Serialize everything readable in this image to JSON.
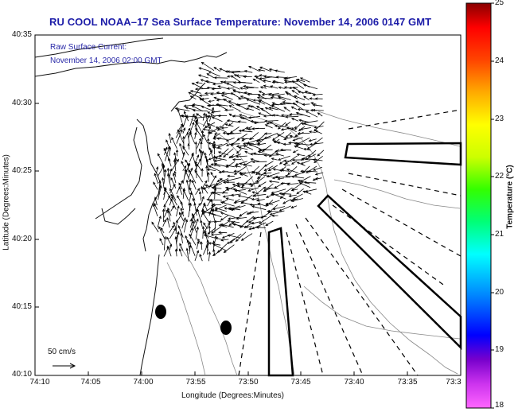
{
  "title": "RU COOL  NOAA–17  Sea Surface Temperature:  November 14, 2006 0147 GMT",
  "overlay": {
    "line1": "Raw Surface Current:",
    "line2": "November 14, 2006 02:00 GMT"
  },
  "axes": {
    "xlabel": "Longitude (Degrees:Minutes)",
    "ylabel": "Latitude (Degrees:Minutes)",
    "x_ticks": [
      "74:10",
      "74:05",
      "74:00",
      "73:55",
      "73:50",
      "73:45",
      "73:40",
      "73:35",
      "73:3"
    ],
    "y_ticks": [
      "40:35",
      "40:30",
      "40:25",
      "40:20",
      "40:15",
      "40:10"
    ]
  },
  "colorbar": {
    "label": "Temperature (°C)",
    "ticks": [
      "25",
      "24",
      "23",
      "22",
      "21",
      "20",
      "19",
      "18"
    ],
    "min": 18,
    "max": 25,
    "colors": [
      "#ff66ff",
      "#7700cc",
      "#0000ff",
      "#0088ff",
      "#00ffff",
      "#00ff77",
      "#33ff00",
      "#ccff00",
      "#ffff00",
      "#ffaa00",
      "#ff4400",
      "#ff0000",
      "#880000"
    ]
  },
  "scale": {
    "label": "50 cm/s"
  }
}
